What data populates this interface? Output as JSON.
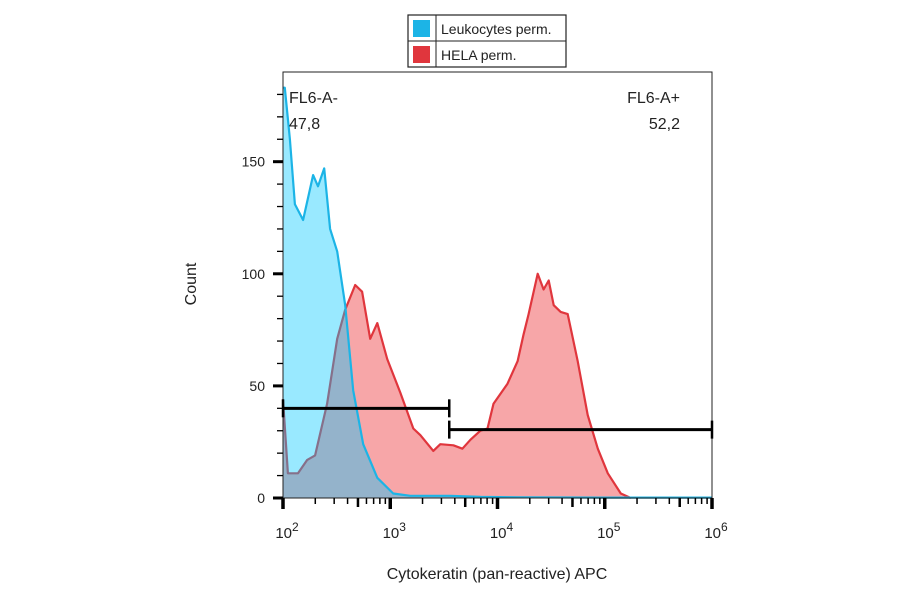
{
  "chart_data": {
    "type": "area",
    "title": "",
    "xlabel": "Cytokeratin (pan-reactive) APC",
    "ylabel": "Count",
    "xscale": "log",
    "xlim": [
      100,
      1000000
    ],
    "ylim": [
      0,
      190
    ],
    "x_ticks": [
      {
        "value": 100,
        "base": "10",
        "exp": "2"
      },
      {
        "value": 1000,
        "base": "10",
        "exp": "3"
      },
      {
        "value": 10000,
        "base": "10",
        "exp": "4"
      },
      {
        "value": 100000,
        "base": "10",
        "exp": "5"
      },
      {
        "value": 1000000,
        "base": "10",
        "exp": "6"
      }
    ],
    "y_ticks": [
      0,
      50,
      100,
      150
    ],
    "grid": false,
    "legend": {
      "placement": "top-center-outside"
    },
    "series": [
      {
        "name": "Leukocytes perm.",
        "color": "#1cb4e6",
        "fill": "#00c8ff",
        "points": [
          [
            100,
            183
          ],
          [
            104,
            183
          ],
          [
            116,
            160
          ],
          [
            129,
            131
          ],
          [
            154,
            124
          ],
          [
            191,
            144
          ],
          [
            212,
            139
          ],
          [
            242,
            147
          ],
          [
            275,
            120
          ],
          [
            320,
            110
          ],
          [
            380,
            86
          ],
          [
            451,
            48
          ],
          [
            560,
            24
          ],
          [
            757,
            9
          ],
          [
            1066,
            2
          ],
          [
            1538,
            1
          ],
          [
            3640,
            1
          ],
          [
            6930,
            0.5
          ],
          [
            16400,
            0.3
          ],
          [
            91800,
            0.2
          ],
          [
            1000000,
            0.2
          ]
        ]
      },
      {
        "name": "HELA perm.",
        "color": "#e0363d",
        "fill": "#f7a1a3",
        "points": [
          [
            100,
            44
          ],
          [
            111,
            11
          ],
          [
            138,
            11
          ],
          [
            168,
            17
          ],
          [
            199,
            19
          ],
          [
            258,
            42
          ],
          [
            320,
            71
          ],
          [
            380,
            84
          ],
          [
            471,
            95
          ],
          [
            547,
            92
          ],
          [
            650,
            71
          ],
          [
            757,
            78
          ],
          [
            937,
            62
          ],
          [
            1240,
            47
          ],
          [
            1640,
            31
          ],
          [
            1910,
            28
          ],
          [
            2520,
            21
          ],
          [
            2930,
            24
          ],
          [
            3880,
            23.5
          ],
          [
            4710,
            22
          ],
          [
            5600,
            26
          ],
          [
            6930,
            30
          ],
          [
            8070,
            31
          ],
          [
            9180,
            42
          ],
          [
            12400,
            51
          ],
          [
            15400,
            61
          ],
          [
            17500,
            73
          ],
          [
            19500,
            82
          ],
          [
            23700,
            100
          ],
          [
            26900,
            93
          ],
          [
            30000,
            97
          ],
          [
            33400,
            86
          ],
          [
            38800,
            83
          ],
          [
            45100,
            82
          ],
          [
            56000,
            61
          ],
          [
            69400,
            37
          ],
          [
            86100,
            22
          ],
          [
            106700,
            11
          ],
          [
            141000,
            2
          ],
          [
            175000,
            0
          ]
        ]
      }
    ],
    "gates": [
      {
        "name": "FL6-A-",
        "value": "47,8",
        "from": 100,
        "to": 3550,
        "level": 40
      },
      {
        "name": "FL6-A+",
        "value": "52,2",
        "from": 3550,
        "to": 1000000,
        "level": 30.5
      }
    ]
  }
}
